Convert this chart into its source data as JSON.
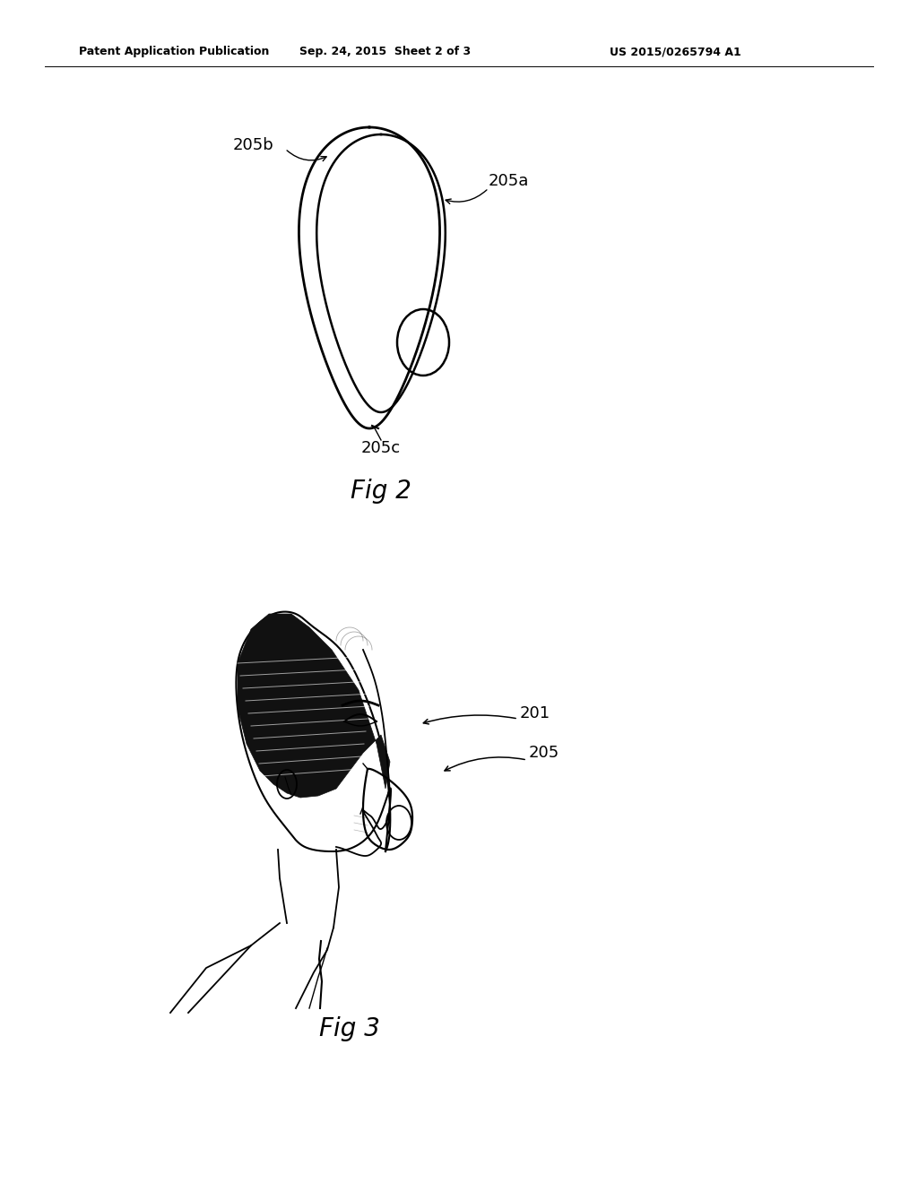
{
  "bg_color": "#ffffff",
  "header_left": "Patent Application Publication",
  "header_center": "Sep. 24, 2015  Sheet 2 of 3",
  "header_right": "US 2015/0265794 A1",
  "fig2_label": "Fig 2",
  "fig3_label": "Fig 3",
  "label_205b": "205b",
  "label_205a": "205a",
  "label_205c": "205c",
  "label_201": "201",
  "label_205": "205",
  "header_fontsize": 9,
  "fig_label_fontsize": 20,
  "annotation_fontsize": 13
}
